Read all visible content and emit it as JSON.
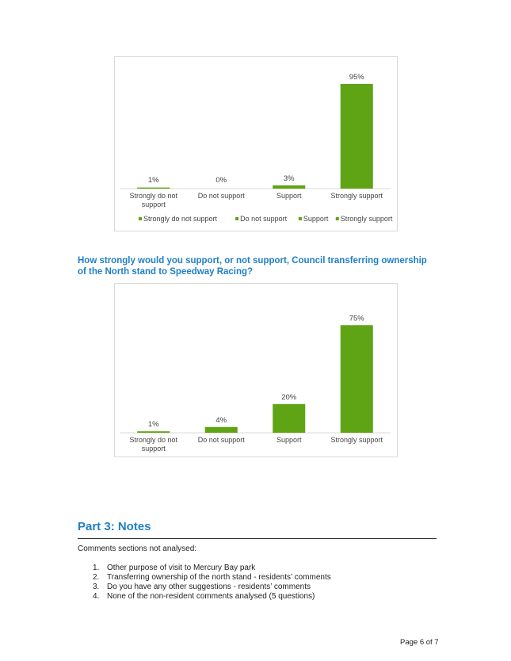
{
  "chart_data": [
    {
      "type": "bar",
      "categories": [
        "Strongly do not support",
        "Do not support",
        "Support",
        "Strongly support"
      ],
      "values": [
        1,
        0,
        3,
        95
      ],
      "data_labels": [
        "1%",
        "0%",
        "3%",
        "95%"
      ],
      "ylim": [
        0,
        100
      ],
      "series_color": "#5fa414",
      "legend": [
        "Strongly do not support",
        "Do not support",
        "Support",
        "Strongly support"
      ],
      "legend_position": "bottom",
      "grid": false
    },
    {
      "type": "bar",
      "categories": [
        "Strongly do not support",
        "Do not support",
        "Support",
        "Strongly support"
      ],
      "values": [
        1,
        4,
        20,
        75
      ],
      "data_labels": [
        "1%",
        "4%",
        "20%",
        "75%"
      ],
      "ylim": [
        0,
        100
      ],
      "series_color": "#5fa414",
      "grid": false
    }
  ],
  "question2": "How strongly would you support, or not support, Council transferring ownership of the North stand to Speedway Racing?",
  "part3": {
    "title": "Part 3: Notes",
    "intro": "Comments sections not analysed:",
    "items": [
      {
        "num": "1.",
        "text": "Other purpose of visit to Mercury Bay park"
      },
      {
        "num": "2.",
        "text": "Transferring ownership of the north stand - residents’ comments"
      },
      {
        "num": "3.",
        "text": "Do you have any other suggestions - residents’ comments"
      },
      {
        "num": "4.",
        "text": "None of the non-resident comments analysed (5 questions)"
      }
    ]
  },
  "page_number": "Page 6 of 7",
  "colors": {
    "heading": "#1f7fc4",
    "bar": "#5fa414"
  }
}
